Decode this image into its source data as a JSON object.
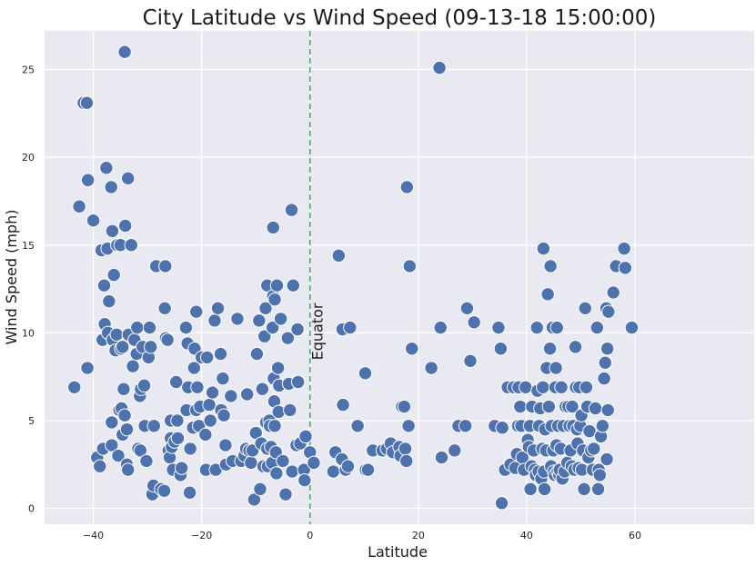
{
  "chart_data": {
    "type": "scatter",
    "title": "City Latitude vs Wind Speed (09-13-18 15:00:00)",
    "xlabel": "Latitude",
    "ylabel": "Wind Speed (mph)",
    "xlim": [
      -49,
      82
    ],
    "ylim": [
      -0.9,
      27.2
    ],
    "xticks": [
      -40,
      -20,
      0,
      20,
      40,
      60
    ],
    "yticks": [
      0,
      5,
      10,
      15,
      20,
      25
    ],
    "grid": true,
    "background": "#e9e9f1",
    "marker_color": "#4c72b0",
    "marker_edge": "#ffffff",
    "vline": {
      "x": 0,
      "color": "#55a868",
      "style": "dashed"
    },
    "annotation": {
      "text": "Equator",
      "x": 0.3,
      "y": 10
    },
    "points": [
      [
        -43.5,
        6.9
      ],
      [
        -42.6,
        17.2
      ],
      [
        -41.8,
        23.1
      ],
      [
        -41.2,
        23.1
      ],
      [
        -41,
        18.7
      ],
      [
        -41.1,
        8
      ],
      [
        -40,
        16.4
      ],
      [
        -39.3,
        2.9
      ],
      [
        -38.8,
        2.4
      ],
      [
        -38.5,
        14.7
      ],
      [
        -38.2,
        3.4
      ],
      [
        -38.3,
        9.6
      ],
      [
        -38,
        12.7
      ],
      [
        -37.9,
        10.5
      ],
      [
        -37.6,
        19.4
      ],
      [
        -37.4,
        14.8
      ],
      [
        -37.3,
        10
      ],
      [
        -37.1,
        11.8
      ],
      [
        -36.7,
        18.3
      ],
      [
        -36.5,
        15.8
      ],
      [
        -36.6,
        4.9
      ],
      [
        -36.6,
        3.6
      ],
      [
        -36.4,
        9.6
      ],
      [
        -36.2,
        13.3
      ],
      [
        -35.9,
        9
      ],
      [
        -35.7,
        9.9
      ],
      [
        -35.6,
        15
      ],
      [
        -35.4,
        3
      ],
      [
        -35.2,
        5.6
      ],
      [
        -35,
        15
      ],
      [
        -34.8,
        5.7
      ],
      [
        -34.9,
        9.1
      ],
      [
        -34.6,
        9.2
      ],
      [
        -34.6,
        4.2
      ],
      [
        -34.4,
        6.8
      ],
      [
        -34.2,
        26
      ],
      [
        -34.1,
        16.1
      ],
      [
        -34.2,
        5.3
      ],
      [
        -33.8,
        2.5
      ],
      [
        -33.6,
        2.2
      ],
      [
        -33.8,
        4.5
      ],
      [
        -33.5,
        9.9
      ],
      [
        -33.6,
        18.8
      ],
      [
        -33,
        15
      ],
      [
        -32.7,
        8.1
      ],
      [
        -32.4,
        9.6
      ],
      [
        -32,
        8.8
      ],
      [
        -31.9,
        10.3
      ],
      [
        -31.7,
        3.4
      ],
      [
        -31.4,
        6.4
      ],
      [
        -31.2,
        6.8
      ],
      [
        -31.3,
        3.3
      ],
      [
        -30.9,
        9.2
      ],
      [
        -30.6,
        7
      ],
      [
        -30.5,
        4.7
      ],
      [
        -30.2,
        2.7
      ],
      [
        -29.8,
        8.6
      ],
      [
        -29.6,
        10.3
      ],
      [
        -29.4,
        9.2
      ],
      [
        -29.1,
        0.8
      ],
      [
        -28.9,
        1.3
      ],
      [
        -28.8,
        4.7
      ],
      [
        -28.4,
        13.8
      ],
      [
        -27.5,
        1.1
      ],
      [
        -26.9,
        1
      ],
      [
        -26.7,
        13.8
      ],
      [
        -26.8,
        11.4
      ],
      [
        -26.6,
        9.7
      ],
      [
        -26.3,
        9.6
      ],
      [
        -26.1,
        3.3
      ],
      [
        -25.9,
        2.9
      ],
      [
        -25.7,
        5
      ],
      [
        -25.7,
        4
      ],
      [
        -25.5,
        3.5
      ],
      [
        -25.3,
        2.2
      ],
      [
        -25,
        3.8
      ],
      [
        -24.7,
        7.2
      ],
      [
        -24.5,
        5
      ],
      [
        -24.4,
        4
      ],
      [
        -23.9,
        1.9
      ],
      [
        -23.7,
        2.3
      ],
      [
        -22.9,
        10.3
      ],
      [
        -22.8,
        5.6
      ],
      [
        -22.6,
        9.4
      ],
      [
        -22.5,
        6.9
      ],
      [
        -22.1,
        3.4
      ],
      [
        -22.2,
        0.9
      ],
      [
        -21.6,
        4.6
      ],
      [
        -21.3,
        9.1
      ],
      [
        -21.4,
        8
      ],
      [
        -21,
        5.6
      ],
      [
        -21,
        11.2
      ],
      [
        -20.8,
        6.9
      ],
      [
        -20.5,
        4.7
      ],
      [
        -20.3,
        5.8
      ],
      [
        -20,
        8.6
      ],
      [
        -19.3,
        4.2
      ],
      [
        -19.2,
        2.2
      ],
      [
        -19,
        8.6
      ],
      [
        -18.6,
        5.9
      ],
      [
        -18.4,
        5
      ],
      [
        -18,
        6.6
      ],
      [
        -17.6,
        10.7
      ],
      [
        -17.4,
        2.2
      ],
      [
        -17,
        11.4
      ],
      [
        -16.5,
        8.8
      ],
      [
        -16.4,
        5.6
      ],
      [
        -16.1,
        7.4
      ],
      [
        -15.9,
        5.3
      ],
      [
        -15.6,
        3.6
      ],
      [
        -15.5,
        2.5
      ],
      [
        -14.6,
        6.4
      ],
      [
        -14.3,
        2.7
      ],
      [
        -13.4,
        10.8
      ],
      [
        -12.7,
        2.7
      ],
      [
        -12.1,
        3
      ],
      [
        -11.8,
        3.4
      ],
      [
        -11.6,
        6.5
      ],
      [
        -11.2,
        3.3
      ],
      [
        -10.9,
        2.6
      ],
      [
        -10.6,
        3.3
      ],
      [
        -10.3,
        0.5
      ],
      [
        -10,
        4.3
      ],
      [
        -9.8,
        8.8
      ],
      [
        -9.4,
        10.7
      ],
      [
        -9.2,
        1.1
      ],
      [
        -9,
        3.7
      ],
      [
        -8.8,
        6.8
      ],
      [
        -8.6,
        2.4
      ],
      [
        -8.4,
        9.8
      ],
      [
        -8.2,
        11.4
      ],
      [
        -8.1,
        4.9
      ],
      [
        -7.9,
        3.4
      ],
      [
        -7.9,
        12.7
      ],
      [
        -7.8,
        2.4
      ],
      [
        -7.5,
        5
      ],
      [
        -7.4,
        4.7
      ],
      [
        -7.2,
        3.5
      ],
      [
        -7,
        2.6
      ],
      [
        -6.9,
        10.3
      ],
      [
        -6.8,
        16
      ],
      [
        -6.8,
        12.1
      ],
      [
        -6.7,
        7.4
      ],
      [
        -6.6,
        6.1
      ],
      [
        -6.5,
        11.9
      ],
      [
        -6.5,
        4.7
      ],
      [
        -6.3,
        3.2
      ],
      [
        -6.2,
        2
      ],
      [
        -6.1,
        12.7
      ],
      [
        -5.9,
        8
      ],
      [
        -5.8,
        5.5
      ],
      [
        -5.7,
        7
      ],
      [
        -5.4,
        10.8
      ],
      [
        -5,
        2.7
      ],
      [
        -4.5,
        0.8
      ],
      [
        -4.1,
        9.7
      ],
      [
        -3.9,
        7.1
      ],
      [
        -3.7,
        5.6
      ],
      [
        -3.4,
        17
      ],
      [
        -3.3,
        2.1
      ],
      [
        -3.1,
        12.7
      ],
      [
        -2.3,
        10.2
      ],
      [
        -2.5,
        3.6
      ],
      [
        -2.2,
        7.2
      ],
      [
        -1.8,
        3.7
      ],
      [
        -1.1,
        2.2
      ],
      [
        -1,
        1.6
      ],
      [
        -0.8,
        4.1
      ],
      [
        0,
        3.2
      ],
      [
        0.7,
        2.6
      ],
      [
        4.3,
        2.1
      ],
      [
        4.7,
        3.2
      ],
      [
        5.3,
        14.4
      ],
      [
        5.9,
        2.8
      ],
      [
        6,
        10.2
      ],
      [
        6.1,
        5.9
      ],
      [
        6.6,
        2.2
      ],
      [
        7,
        2.4
      ],
      [
        7.4,
        10.3
      ],
      [
        8.8,
        4.7
      ],
      [
        10.2,
        7.7
      ],
      [
        10.3,
        2.2
      ],
      [
        10.7,
        2.2
      ],
      [
        11.6,
        3.3
      ],
      [
        13.4,
        3.3
      ],
      [
        14.2,
        3.4
      ],
      [
        14.9,
        3.7
      ],
      [
        15.3,
        3.2
      ],
      [
        16.5,
        3.5
      ],
      [
        16.7,
        3
      ],
      [
        17,
        5.8
      ],
      [
        17.4,
        5.8
      ],
      [
        17.6,
        3.4
      ],
      [
        17.8,
        2.7
      ],
      [
        17.9,
        18.3
      ],
      [
        18.2,
        4.7
      ],
      [
        18.4,
        13.8
      ],
      [
        18.8,
        9.1
      ],
      [
        22.4,
        8
      ],
      [
        23.9,
        25.1
      ],
      [
        24.1,
        10.3
      ],
      [
        24.3,
        2.9
      ],
      [
        26.7,
        3.3
      ],
      [
        27.4,
        4.7
      ],
      [
        28.7,
        4.7
      ],
      [
        29,
        11.4
      ],
      [
        29.6,
        8.4
      ],
      [
        30.3,
        10.6
      ],
      [
        34.1,
        4.7
      ],
      [
        34.8,
        10.3
      ],
      [
        35.2,
        9.1
      ],
      [
        35.4,
        0.3
      ],
      [
        35.5,
        4.6
      ],
      [
        36,
        2.2
      ],
      [
        36.5,
        6.9
      ],
      [
        37,
        2.5
      ],
      [
        37.6,
        6.9
      ],
      [
        37.9,
        2.3
      ],
      [
        38.2,
        3.1
      ],
      [
        38.4,
        4.7
      ],
      [
        38.5,
        6.9
      ],
      [
        38.8,
        5.8
      ],
      [
        39,
        4.7
      ],
      [
        39.2,
        2.9
      ],
      [
        39.5,
        2.2
      ],
      [
        39.8,
        6.9
      ],
      [
        40.2,
        3.9
      ],
      [
        40.4,
        3.5
      ],
      [
        40.7,
        1.1
      ],
      [
        40.6,
        4.7
      ],
      [
        40.9,
        2.4
      ],
      [
        41,
        5.8
      ],
      [
        41.3,
        3.3
      ],
      [
        41.5,
        2.2
      ],
      [
        41.7,
        1.9
      ],
      [
        41.9,
        10.3
      ],
      [
        42,
        6.7
      ],
      [
        42.2,
        2.1
      ],
      [
        42.3,
        4.7
      ],
      [
        42.5,
        5.7
      ],
      [
        42.7,
        1.7
      ],
      [
        42.9,
        3.4
      ],
      [
        43,
        6.9
      ],
      [
        43.1,
        14.8
      ],
      [
        43.2,
        2.1
      ],
      [
        43.3,
        1.1
      ],
      [
        43.4,
        4.5
      ],
      [
        43.6,
        3.3
      ],
      [
        43.7,
        8
      ],
      [
        43.9,
        12.2
      ],
      [
        44.1,
        5.8
      ],
      [
        44.3,
        9.1
      ],
      [
        44.4,
        13.8
      ],
      [
        44.5,
        2.4
      ],
      [
        44.6,
        4.7
      ],
      [
        44.8,
        10.3
      ],
      [
        44.9,
        3.3
      ],
      [
        45,
        2.1
      ],
      [
        45.2,
        1.9
      ],
      [
        45.3,
        6.9
      ],
      [
        45.4,
        8
      ],
      [
        45.5,
        3.6
      ],
      [
        45.6,
        10.3
      ],
      [
        45.7,
        2.1
      ],
      [
        45.8,
        4.7
      ],
      [
        46,
        1.9
      ],
      [
        46.1,
        2.2
      ],
      [
        46.3,
        3.4
      ],
      [
        46.4,
        6.9
      ],
      [
        46.6,
        1.7
      ],
      [
        46.8,
        4.7
      ],
      [
        47,
        2.1
      ],
      [
        47.2,
        5.8
      ],
      [
        47.5,
        2.6
      ],
      [
        47.7,
        5.8
      ],
      [
        47.9,
        4.7
      ],
      [
        48.1,
        3.3
      ],
      [
        48.3,
        2.4
      ],
      [
        48.4,
        5.8
      ],
      [
        48.6,
        4.7
      ],
      [
        48.8,
        2.2
      ],
      [
        49,
        9.2
      ],
      [
        49.1,
        6.9
      ],
      [
        49.3,
        4.5
      ],
      [
        49.4,
        3.7
      ],
      [
        49.6,
        2.3
      ],
      [
        49.7,
        6.9
      ],
      [
        49.9,
        4.7
      ],
      [
        50.1,
        5.3
      ],
      [
        50.2,
        2.2
      ],
      [
        50.4,
        3.3
      ],
      [
        50.6,
        1.1
      ],
      [
        50.8,
        11.4
      ],
      [
        51,
        6.9
      ],
      [
        51.2,
        5.8
      ],
      [
        51.4,
        2.9
      ],
      [
        51.6,
        4.4
      ],
      [
        51.9,
        3.3
      ],
      [
        52.2,
        2.2
      ],
      [
        52.4,
        3.4
      ],
      [
        52.7,
        5.7
      ],
      [
        53,
        10.3
      ],
      [
        53.2,
        1.1
      ],
      [
        53.3,
        2.2
      ],
      [
        53.5,
        1.9
      ],
      [
        53.7,
        4.1
      ],
      [
        54,
        4.7
      ],
      [
        54.3,
        7.4
      ],
      [
        54.5,
        8.3
      ],
      [
        54.7,
        11.4
      ],
      [
        54.9,
        9.1
      ],
      [
        55,
        5.6
      ],
      [
        55.1,
        11.2
      ],
      [
        54.8,
        2.8
      ],
      [
        56,
        12.3
      ],
      [
        56.5,
        13.8
      ],
      [
        58,
        14.8
      ],
      [
        58.2,
        13.7
      ],
      [
        59.4,
        10.3
      ]
    ]
  }
}
